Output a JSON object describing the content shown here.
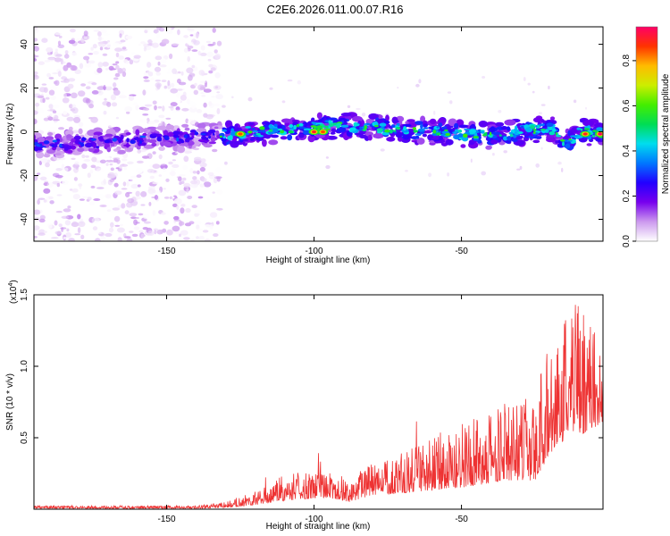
{
  "title": "C2E6.2026.011.00.07.R16",
  "chart_data": [
    {
      "type": "heatmap",
      "name": "spectrogram",
      "xlabel": "Height of straight line (km)",
      "ylabel": "Frequency (Hz)",
      "xlim": [
        -195,
        -2
      ],
      "ylim": [
        -50,
        48
      ],
      "xticks": [
        -150,
        -100,
        -50
      ],
      "yticks": [
        -40,
        -20,
        0,
        20,
        40
      ],
      "xtick_labels": [
        "-150",
        "-100",
        "-50"
      ],
      "ytick_labels": [
        "-40",
        "-20",
        "0",
        "20",
        "40"
      ],
      "noise_region_x": [
        -195,
        -132
      ],
      "signal_band": {
        "x_start": -195,
        "x_end": -2,
        "center_hz": [
          {
            "x": -195,
            "f": -6
          },
          {
            "x": -150,
            "f": -3
          },
          {
            "x": -110,
            "f": 1
          },
          {
            "x": -90,
            "f": 3
          },
          {
            "x": -60,
            "f": 0
          },
          {
            "x": -40,
            "f": -2
          },
          {
            "x": -20,
            "f": 2
          },
          {
            "x": -15,
            "f": -6
          },
          {
            "x": -10,
            "f": 0
          },
          {
            "x": -2,
            "f": -1
          }
        ],
        "width_hz": 7,
        "peaks": [
          {
            "x": -125,
            "f": -1,
            "amp": 0.85
          },
          {
            "x": -100,
            "f": 0,
            "amp": 0.9
          },
          {
            "x": -97,
            "f": 0,
            "amp": 0.85
          },
          {
            "x": -8,
            "f": -1,
            "amp": 0.9
          },
          {
            "x": -3,
            "f": -1,
            "amp": 0.95
          }
        ]
      },
      "colorbar": {
        "label": "Normalized spectral amplitude",
        "range": [
          0,
          0.95
        ],
        "ticks": [
          0.0,
          0.2,
          0.4,
          0.6,
          0.8
        ],
        "tick_labels": [
          "0.0",
          "0.2",
          "0.4",
          "0.6",
          "0.8"
        ],
        "colormap": [
          "#ffffff",
          "#cc99ee",
          "#7700ee",
          "#2200ff",
          "#0077ff",
          "#00ddee",
          "#00dd55",
          "#44ee00",
          "#ccee00",
          "#ffbb00",
          "#ff3300",
          "#ff0066"
        ]
      }
    },
    {
      "type": "line",
      "name": "snr",
      "xlabel": "Height of straight line (km)",
      "ylabel": "SNR (10 * v/v)",
      "y_multiplier_label": "(x10",
      "y_multiplier_exp": "4",
      "xlim": [
        -195,
        -2
      ],
      "ylim": [
        0,
        1.5
      ],
      "xticks": [
        -150,
        -100,
        -50
      ],
      "yticks": [
        0.5,
        1.0,
        1.5
      ],
      "xtick_labels": [
        "-150",
        "-100",
        "-50"
      ],
      "ytick_labels": [
        "0.5",
        "1.0",
        "1.5"
      ],
      "color": "#ee3333",
      "envelope": [
        {
          "x": -195,
          "base": 0.005,
          "amp": 0.02
        },
        {
          "x": -140,
          "base": 0.005,
          "amp": 0.02
        },
        {
          "x": -130,
          "base": 0.01,
          "amp": 0.04
        },
        {
          "x": -120,
          "base": 0.03,
          "amp": 0.1
        },
        {
          "x": -110,
          "base": 0.06,
          "amp": 0.18
        },
        {
          "x": -95,
          "base": 0.08,
          "amp": 0.22
        },
        {
          "x": -88,
          "base": 0.05,
          "amp": 0.15
        },
        {
          "x": -80,
          "base": 0.1,
          "amp": 0.25
        },
        {
          "x": -65,
          "base": 0.12,
          "amp": 0.35
        },
        {
          "x": -50,
          "base": 0.15,
          "amp": 0.45
        },
        {
          "x": -35,
          "base": 0.2,
          "amp": 0.55
        },
        {
          "x": -25,
          "base": 0.2,
          "amp": 0.6
        },
        {
          "x": -18,
          "base": 0.45,
          "amp": 0.9
        },
        {
          "x": -12,
          "base": 0.5,
          "amp": 1.0
        },
        {
          "x": -6,
          "base": 0.55,
          "amp": 0.75
        },
        {
          "x": -2,
          "base": 0.6,
          "amp": 0.5
        }
      ]
    }
  ]
}
